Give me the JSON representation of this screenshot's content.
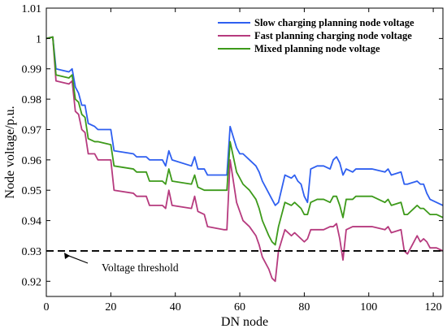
{
  "chart_data": {
    "type": "line",
    "xlabel": "DN node",
    "ylabel": "Node voltage/p.u.",
    "xlim": [
      0,
      123
    ],
    "ylim": [
      0.915,
      1.01
    ],
    "xticks": [
      0,
      20,
      40,
      60,
      80,
      100,
      120
    ],
    "yticks": [
      0.92,
      0.93,
      0.94,
      0.95,
      0.96,
      0.97,
      0.98,
      0.99,
      1.0,
      1.01
    ],
    "ytick_labels": [
      "0.92",
      "0.93",
      "0.94",
      "0.95",
      "0.96",
      "0.97",
      "0.98",
      "0.99",
      "1",
      "1.01"
    ],
    "grid": false,
    "legend_position": "top-right",
    "series": [
      {
        "name": "Slow charging planning node voltage",
        "color": "#2e5ff0",
        "x": [
          0,
          2,
          3,
          7,
          8,
          9,
          10,
          11,
          12,
          13,
          15,
          16,
          20,
          21,
          27,
          28,
          31,
          32,
          36,
          37,
          38,
          39,
          45,
          46,
          47,
          49,
          50,
          55,
          56,
          57,
          59,
          60,
          61,
          62,
          63,
          65,
          66,
          67,
          69,
          70,
          71,
          72,
          74,
          76,
          77,
          78,
          79,
          80,
          81,
          82,
          84,
          86,
          88,
          89,
          90,
          91,
          92,
          93,
          95,
          96,
          99,
          100,
          101,
          105,
          106,
          107,
          110,
          111,
          112,
          115,
          116,
          117,
          118,
          119,
          121,
          123
        ],
        "values": [
          1.0,
          1.0005,
          0.99,
          0.989,
          0.99,
          0.984,
          0.982,
          0.978,
          0.978,
          0.972,
          0.971,
          0.97,
          0.97,
          0.963,
          0.962,
          0.961,
          0.961,
          0.96,
          0.96,
          0.958,
          0.963,
          0.96,
          0.958,
          0.961,
          0.957,
          0.957,
          0.955,
          0.955,
          0.955,
          0.971,
          0.964,
          0.962,
          0.962,
          0.961,
          0.96,
          0.958,
          0.956,
          0.953,
          0.949,
          0.947,
          0.945,
          0.946,
          0.955,
          0.954,
          0.955,
          0.953,
          0.952,
          0.948,
          0.946,
          0.957,
          0.958,
          0.958,
          0.957,
          0.96,
          0.961,
          0.959,
          0.955,
          0.957,
          0.956,
          0.957,
          0.957,
          0.957,
          0.957,
          0.956,
          0.957,
          0.955,
          0.956,
          0.952,
          0.952,
          0.953,
          0.952,
          0.952,
          0.949,
          0.947,
          0.946,
          0.945
        ]
      },
      {
        "name": "Fast planning charging node voltage",
        "color": "#b63a7e",
        "x": [
          0,
          2,
          3,
          7,
          8,
          9,
          10,
          11,
          12,
          13,
          15,
          16,
          20,
          21,
          27,
          28,
          31,
          32,
          36,
          37,
          38,
          39,
          45,
          46,
          47,
          49,
          50,
          55,
          56,
          57,
          59,
          60,
          61,
          62,
          63,
          65,
          66,
          67,
          69,
          70,
          71,
          72,
          74,
          76,
          77,
          78,
          79,
          80,
          81,
          82,
          84,
          86,
          88,
          89,
          90,
          91,
          92,
          93,
          95,
          96,
          99,
          100,
          101,
          105,
          106,
          107,
          110,
          111,
          112,
          115,
          116,
          117,
          118,
          119,
          121,
          123
        ],
        "values": [
          1.0,
          1.0005,
          0.986,
          0.985,
          0.986,
          0.976,
          0.975,
          0.97,
          0.969,
          0.962,
          0.962,
          0.96,
          0.96,
          0.95,
          0.949,
          0.948,
          0.948,
          0.945,
          0.945,
          0.944,
          0.95,
          0.945,
          0.944,
          0.948,
          0.943,
          0.942,
          0.938,
          0.937,
          0.937,
          0.96,
          0.946,
          0.943,
          0.94,
          0.939,
          0.938,
          0.935,
          0.932,
          0.928,
          0.924,
          0.921,
          0.92,
          0.93,
          0.937,
          0.935,
          0.936,
          0.935,
          0.934,
          0.933,
          0.934,
          0.937,
          0.937,
          0.937,
          0.938,
          0.938,
          0.939,
          0.934,
          0.927,
          0.937,
          0.938,
          0.938,
          0.938,
          0.938,
          0.938,
          0.937,
          0.938,
          0.936,
          0.937,
          0.93,
          0.929,
          0.935,
          0.933,
          0.934,
          0.933,
          0.931,
          0.931,
          0.93
        ]
      },
      {
        "name": "Mixed planning node voltage",
        "color": "#3d9a1a",
        "x": [
          0,
          2,
          3,
          7,
          8,
          9,
          10,
          11,
          12,
          13,
          15,
          16,
          20,
          21,
          27,
          28,
          31,
          32,
          36,
          37,
          38,
          39,
          45,
          46,
          47,
          49,
          50,
          55,
          56,
          57,
          59,
          60,
          61,
          62,
          63,
          65,
          66,
          67,
          69,
          70,
          71,
          72,
          74,
          76,
          77,
          78,
          79,
          80,
          81,
          82,
          84,
          86,
          88,
          89,
          90,
          91,
          92,
          93,
          95,
          96,
          99,
          100,
          101,
          105,
          106,
          107,
          110,
          111,
          112,
          115,
          116,
          117,
          118,
          119,
          121,
          123
        ],
        "values": [
          1.0,
          1.0005,
          0.988,
          0.987,
          0.988,
          0.98,
          0.979,
          0.975,
          0.974,
          0.967,
          0.966,
          0.966,
          0.965,
          0.958,
          0.957,
          0.956,
          0.956,
          0.953,
          0.953,
          0.952,
          0.957,
          0.953,
          0.952,
          0.955,
          0.951,
          0.95,
          0.95,
          0.95,
          0.95,
          0.966,
          0.956,
          0.954,
          0.952,
          0.951,
          0.95,
          0.947,
          0.944,
          0.94,
          0.935,
          0.933,
          0.932,
          0.938,
          0.946,
          0.945,
          0.946,
          0.945,
          0.944,
          0.942,
          0.942,
          0.946,
          0.947,
          0.947,
          0.946,
          0.948,
          0.948,
          0.945,
          0.941,
          0.947,
          0.947,
          0.948,
          0.948,
          0.948,
          0.948,
          0.946,
          0.947,
          0.945,
          0.946,
          0.942,
          0.942,
          0.945,
          0.944,
          0.944,
          0.943,
          0.942,
          0.942,
          0.941
        ]
      }
    ],
    "threshold": {
      "y": 0.93,
      "label": "Voltage threshold"
    }
  }
}
